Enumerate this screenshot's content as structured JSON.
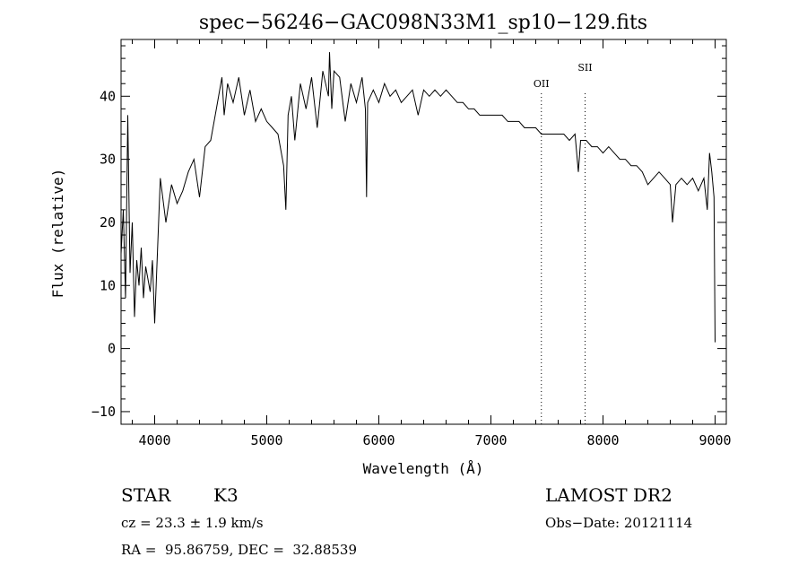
{
  "chart_data": {
    "type": "line",
    "title": "spec−56246−GAC098N33M1_sp10−129.fits",
    "xlabel": "Wavelength (Å)",
    "ylabel": "Flux (relative)",
    "xlim": [
      3700,
      9100
    ],
    "ylim": [
      -12,
      49
    ],
    "xticks": [
      4000,
      5000,
      6000,
      7000,
      8000,
      9000
    ],
    "yticks": [
      -10,
      0,
      10,
      20,
      30,
      40
    ],
    "grid": false,
    "line_color": "#000000",
    "series": [
      {
        "x": [
          3700,
          3720,
          3740,
          3760,
          3780,
          3800,
          3820,
          3840,
          3860,
          3880,
          3900,
          3920,
          3940,
          3960,
          3980,
          4000,
          4050,
          4100,
          4150,
          4200,
          4250,
          4300,
          4350,
          4400,
          4450,
          4500,
          4550,
          4600,
          4620,
          4650,
          4700,
          4750,
          4800,
          4850,
          4900,
          4950,
          5000,
          5050,
          5100,
          5150,
          5170,
          5190,
          5220,
          5250,
          5300,
          5350,
          5400,
          5450,
          5500,
          5550,
          5560,
          5580,
          5600,
          5650,
          5700,
          5750,
          5800,
          5850,
          5880,
          5890,
          5900,
          5950,
          6000,
          6050,
          6100,
          6150,
          6200,
          6250,
          6300,
          6350,
          6400,
          6450,
          6500,
          6550,
          6600,
          6650,
          6700,
          6750,
          6800,
          6850,
          6900,
          6950,
          7000,
          7050,
          7100,
          7150,
          7200,
          7250,
          7300,
          7350,
          7400,
          7450,
          7500,
          7550,
          7600,
          7650,
          7700,
          7750,
          7780,
          7800,
          7850,
          7900,
          7950,
          8000,
          8050,
          8100,
          8150,
          8200,
          8250,
          8300,
          8350,
          8400,
          8450,
          8500,
          8550,
          8600,
          8620,
          8650,
          8700,
          8750,
          8800,
          8850,
          8900,
          8930,
          8950,
          8970,
          8990,
          9000
        ],
        "y": [
          15,
          22,
          8,
          37,
          12,
          20,
          5,
          14,
          10,
          16,
          8,
          13,
          11,
          9,
          14,
          4,
          27,
          20,
          26,
          23,
          25,
          28,
          30,
          24,
          32,
          33,
          38,
          43,
          37,
          42,
          39,
          43,
          37,
          41,
          36,
          38,
          36,
          35,
          34,
          29,
          22,
          37,
          40,
          33,
          42,
          38,
          43,
          35,
          44,
          40,
          47,
          38,
          44,
          43,
          36,
          42,
          39,
          43,
          38,
          24,
          39,
          41,
          39,
          42,
          40,
          41,
          39,
          40,
          41,
          37,
          41,
          40,
          41,
          40,
          41,
          40,
          39,
          39,
          38,
          38,
          37,
          37,
          37,
          37,
          37,
          36,
          36,
          36,
          35,
          35,
          35,
          34,
          34,
          34,
          34,
          34,
          33,
          34,
          28,
          33,
          33,
          32,
          32,
          31,
          32,
          31,
          30,
          30,
          29,
          29,
          28,
          26,
          27,
          28,
          27,
          26,
          20,
          26,
          27,
          26,
          27,
          25,
          27,
          22,
          31,
          28,
          24,
          1
        ]
      }
    ],
    "annotations": [
      {
        "x": 7450,
        "label": "OII"
      },
      {
        "x": 7840,
        "label": "SII"
      }
    ]
  },
  "info": {
    "object_class": "STAR",
    "subclass": "K3",
    "survey": "LAMOST DR2",
    "cz": "cz = 23.3 ± 1.9 km/s",
    "obs_date": "Obs−Date: 20121114",
    "coords": "RA =  95.86759, DEC =  32.88539"
  }
}
